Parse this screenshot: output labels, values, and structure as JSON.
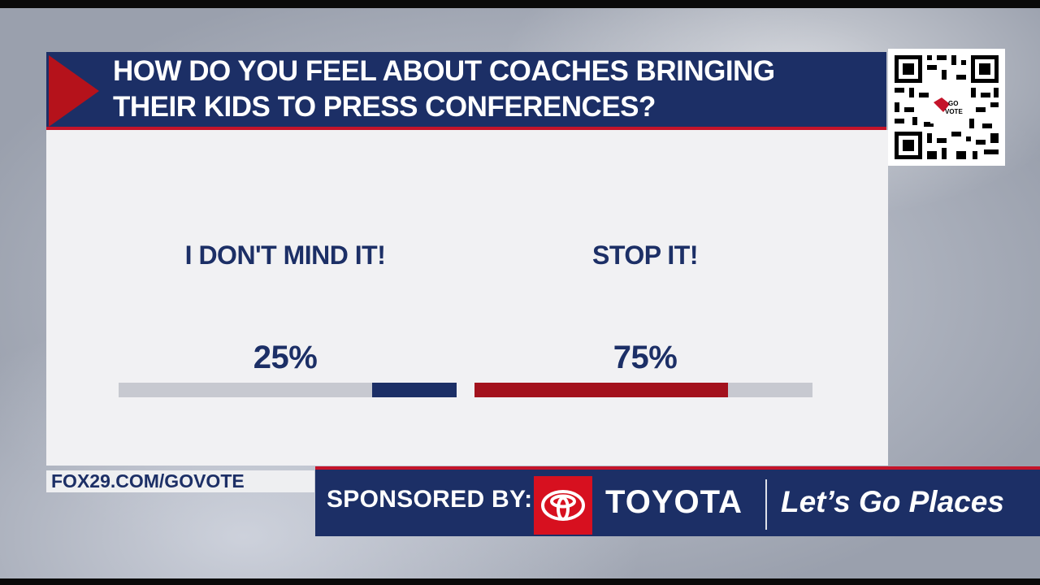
{
  "poll": {
    "question_line1": "HOW DO YOU FEEL ABOUT COACHES BRINGING",
    "question_line2": "THEIR KIDS TO PRESS CONFERENCES?",
    "options": [
      {
        "label": "I DON'T MIND IT!",
        "percent_text": "25%",
        "percent": 25,
        "bar_color": "#1c2f66"
      },
      {
        "label": "STOP IT!",
        "percent_text": "75%",
        "percent": 75,
        "bar_color": "#a3121d"
      }
    ]
  },
  "qr": {
    "label": "GO VOTE"
  },
  "footer": {
    "url": "FOX29.COM/GOVOTE",
    "sponsored_label": "SPONSORED BY:",
    "sponsor_name": "TOYOTA",
    "sponsor_slogan": "Let’s Go Places"
  },
  "colors": {
    "navy": "#1c2f66",
    "red": "#c4142a",
    "dark_red": "#a3121d",
    "track": "#c7c9d0"
  }
}
